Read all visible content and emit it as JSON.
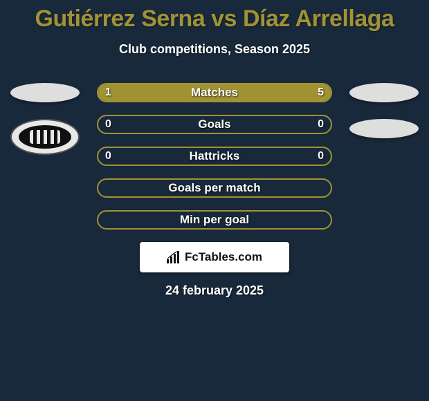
{
  "title": "Gutiérrez Serna vs Díaz Arrellaga",
  "subtitle": "Club competitions, Season 2025",
  "colors": {
    "background": "#18293b",
    "accent": "#a19234",
    "text": "#ffffff"
  },
  "bars": [
    {
      "label": "Matches",
      "left": "1",
      "right": "5",
      "fill_left_pct": 16.7,
      "fill_right_pct": 83.3
    },
    {
      "label": "Goals",
      "left": "0",
      "right": "0",
      "fill_left_pct": 0,
      "fill_right_pct": 0
    },
    {
      "label": "Hattricks",
      "left": "0",
      "right": "0",
      "fill_left_pct": 0,
      "fill_right_pct": 0
    },
    {
      "label": "Goals per match",
      "left": "",
      "right": "",
      "fill_left_pct": 0,
      "fill_right_pct": 0
    },
    {
      "label": "Min per goal",
      "left": "",
      "right": "",
      "fill_left_pct": 0,
      "fill_right_pct": 0
    }
  ],
  "brand": "FcTables.com",
  "date": "24 february 2025"
}
